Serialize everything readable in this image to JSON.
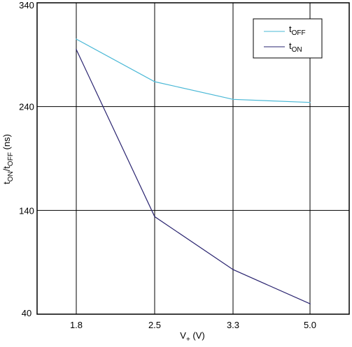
{
  "chart_data": {
    "type": "line",
    "x_categories": [
      "1.8",
      "2.5",
      "3.3",
      "5.0"
    ],
    "series": [
      {
        "name": "tOFF",
        "name_main": "t",
        "name_sub": "OFF",
        "color": "#4ab8d6",
        "values": [
          305,
          264,
          247,
          244
        ]
      },
      {
        "name": "tON",
        "name_main": "t",
        "name_sub": "ON",
        "color": "#2a2470",
        "values": [
          295,
          134,
          83,
          50
        ]
      }
    ],
    "y_ticks": [
      "340",
      "240",
      "140",
      "40"
    ],
    "ylim": [
      40,
      340
    ],
    "xlabel": {
      "main": "V",
      "sub": "+",
      "rest": " (V)"
    },
    "ylabel": {
      "p1": "t",
      "s1": "ON",
      "p2": "/t",
      "s2": "OFF",
      "p3": " (ns)"
    },
    "grid": true,
    "legend_position": "top-right"
  }
}
